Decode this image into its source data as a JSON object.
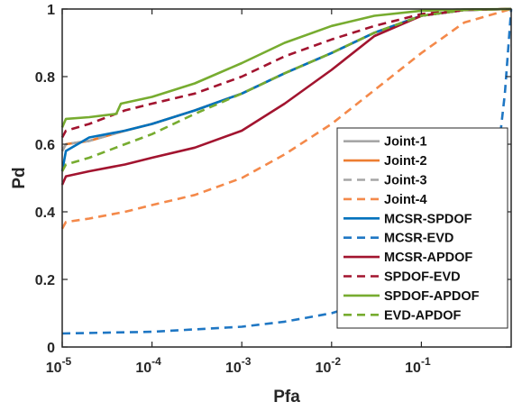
{
  "chart_data": {
    "type": "line",
    "title": "",
    "xlabel": "Pfa",
    "ylabel": "Pd",
    "xscale": "log",
    "xlim": [
      1e-05,
      1
    ],
    "ylim": [
      0,
      1
    ],
    "grid": false,
    "legend_position": "bottom-right",
    "x_ticks": [
      {
        "base": "10",
        "exp": "-5",
        "value": 1e-05
      },
      {
        "base": "10",
        "exp": "-4",
        "value": 0.0001
      },
      {
        "base": "10",
        "exp": "-3",
        "value": 0.001
      },
      {
        "base": "10",
        "exp": "-2",
        "value": 0.01
      },
      {
        "base": "10",
        "exp": "-1",
        "value": 0.1
      }
    ],
    "y_ticks": [
      {
        "label": "0",
        "value": 0
      },
      {
        "label": "0.2",
        "value": 0.2
      },
      {
        "label": "0.4",
        "value": 0.4
      },
      {
        "label": "0.6",
        "value": 0.6
      },
      {
        "label": "0.8",
        "value": 0.8
      },
      {
        "label": "1",
        "value": 1
      }
    ],
    "series": [
      {
        "name": "Joint-1",
        "color": "#a6a6a6",
        "dash": "solid",
        "x": [
          1e-05,
          1.1e-05,
          2e-05,
          5e-05,
          0.0001,
          0.0003,
          0.001,
          0.003,
          0.01,
          0.03,
          0.1,
          0.3,
          1
        ],
        "y": [
          0.58,
          0.6,
          0.61,
          0.64,
          0.66,
          0.7,
          0.75,
          0.81,
          0.87,
          0.93,
          0.98,
          0.997,
          1
        ]
      },
      {
        "name": "Joint-2",
        "color": "#ed7d31",
        "dash": "solid",
        "x": [
          1e-05,
          1.1e-05,
          2e-05,
          5e-05,
          0.0001,
          0.0003,
          0.001,
          0.003,
          0.01,
          0.03,
          0.1,
          0.3,
          1
        ],
        "y": [
          0.58,
          0.6,
          0.61,
          0.64,
          0.66,
          0.7,
          0.75,
          0.81,
          0.87,
          0.93,
          0.98,
          0.997,
          1
        ]
      },
      {
        "name": "Joint-3",
        "color": "#a6a6a6",
        "dash": "dashed",
        "x": [
          1e-05,
          1.1e-05,
          2e-05,
          5e-05,
          0.0001,
          0.0003,
          0.001,
          0.003,
          0.01,
          0.03,
          0.1,
          0.3,
          1
        ],
        "y": [
          0.58,
          0.6,
          0.61,
          0.64,
          0.66,
          0.7,
          0.75,
          0.81,
          0.87,
          0.93,
          0.98,
          0.997,
          1
        ]
      },
      {
        "name": "Joint-4",
        "color": "#f4894a",
        "dash": "dashed",
        "x": [
          1e-05,
          1.1e-05,
          2e-05,
          5e-05,
          0.0001,
          0.0003,
          0.001,
          0.003,
          0.01,
          0.03,
          0.1,
          0.3,
          1
        ],
        "y": [
          0.35,
          0.37,
          0.38,
          0.4,
          0.42,
          0.45,
          0.5,
          0.57,
          0.66,
          0.76,
          0.87,
          0.96,
          1
        ]
      },
      {
        "name": "MCSR-SPDOF",
        "color": "#0072bd",
        "dash": "solid",
        "x": [
          1e-05,
          1.1e-05,
          2e-05,
          5e-05,
          0.0001,
          0.0003,
          0.001,
          0.003,
          0.01,
          0.03,
          0.1,
          0.3,
          1
        ],
        "y": [
          0.52,
          0.58,
          0.62,
          0.64,
          0.66,
          0.7,
          0.75,
          0.81,
          0.87,
          0.93,
          0.98,
          0.997,
          1
        ]
      },
      {
        "name": "MCSR-EVD",
        "color": "#1f77c4",
        "dash": "dashed",
        "x": [
          1e-05,
          0.0001,
          0.001,
          0.003,
          0.01,
          0.03,
          0.1,
          0.3,
          0.5,
          0.7,
          0.85,
          1
        ],
        "y": [
          0.04,
          0.045,
          0.06,
          0.075,
          0.1,
          0.14,
          0.2,
          0.3,
          0.4,
          0.55,
          0.75,
          1
        ]
      },
      {
        "name": "MCSR-APDOF",
        "color": "#a2142f",
        "dash": "solid",
        "x": [
          1e-05,
          1.1e-05,
          2e-05,
          5e-05,
          0.0001,
          0.0003,
          0.001,
          0.003,
          0.01,
          0.03,
          0.1,
          0.3,
          1
        ],
        "y": [
          0.48,
          0.505,
          0.52,
          0.54,
          0.56,
          0.59,
          0.64,
          0.72,
          0.82,
          0.92,
          0.98,
          0.997,
          1
        ]
      },
      {
        "name": "SPDOF-EVD",
        "color": "#a2142f",
        "dash": "dashed",
        "x": [
          1e-05,
          1.1e-05,
          2e-05,
          5e-05,
          0.0001,
          0.0003,
          0.001,
          0.003,
          0.01,
          0.03,
          0.1,
          0.3,
          1
        ],
        "y": [
          0.62,
          0.64,
          0.66,
          0.7,
          0.72,
          0.75,
          0.8,
          0.86,
          0.91,
          0.95,
          0.985,
          0.998,
          1
        ]
      },
      {
        "name": "SPDOF-APDOF",
        "color": "#77ac30",
        "dash": "solid",
        "x": [
          1e-05,
          1.1e-05,
          2e-05,
          4e-05,
          4.5e-05,
          0.0001,
          0.0003,
          0.001,
          0.003,
          0.01,
          0.03,
          0.1,
          0.3,
          1
        ],
        "y": [
          0.65,
          0.675,
          0.68,
          0.69,
          0.72,
          0.74,
          0.78,
          0.84,
          0.9,
          0.95,
          0.98,
          0.995,
          0.999,
          1
        ]
      },
      {
        "name": "EVD-APDOF",
        "color": "#77ac30",
        "dash": "dashed",
        "x": [
          1e-05,
          1.1e-05,
          2e-05,
          5e-05,
          0.0001,
          0.0003,
          0.001,
          0.003,
          0.01,
          0.03,
          0.1,
          0.3,
          1
        ],
        "y": [
          0.52,
          0.54,
          0.56,
          0.6,
          0.63,
          0.69,
          0.75,
          0.81,
          0.87,
          0.93,
          0.98,
          0.997,
          1
        ]
      }
    ]
  }
}
